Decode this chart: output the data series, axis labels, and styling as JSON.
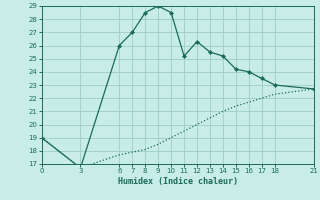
{
  "xlabel": "Humidex (Indice chaleur)",
  "bg_color": "#c8ece6",
  "grid_color": "#9dcdc5",
  "line_color": "#1a6b5a",
  "x_ticks": [
    0,
    3,
    6,
    7,
    8,
    9,
    10,
    11,
    12,
    13,
    14,
    15,
    16,
    17,
    18,
    21
  ],
  "ylim": [
    17,
    29
  ],
  "xlim": [
    0,
    21
  ],
  "y_ticks": [
    17,
    18,
    19,
    20,
    21,
    22,
    23,
    24,
    25,
    26,
    27,
    28,
    29
  ],
  "curve1_x": [
    0,
    3,
    6,
    7,
    8,
    9,
    10,
    11,
    12,
    13,
    14,
    15,
    16,
    17,
    18,
    21
  ],
  "curve1_y": [
    19,
    16.7,
    26,
    27,
    28.5,
    29,
    28.5,
    25.2,
    26.3,
    25.5,
    25.2,
    24.2,
    24.0,
    23.5,
    23.0,
    22.7
  ],
  "curve2_x": [
    0,
    3,
    6,
    7,
    8,
    9,
    10,
    11,
    12,
    13,
    14,
    15,
    16,
    17,
    18,
    21
  ],
  "curve2_y": [
    19,
    16.7,
    17.7,
    17.9,
    18.1,
    18.5,
    19.0,
    19.5,
    20.0,
    20.5,
    21.0,
    21.4,
    21.7,
    22.0,
    22.3,
    22.7
  ]
}
